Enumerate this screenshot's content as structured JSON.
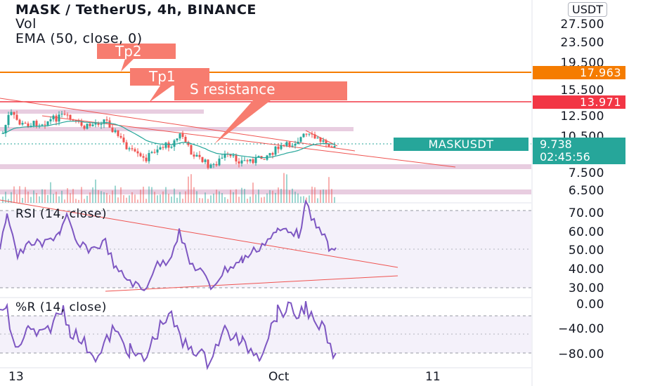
{
  "header": {
    "symbol_line": "MASK / TetherUS, 4h, BINANCE",
    "vol_label": "Vol",
    "ema_label": "EMA (50, close, 0)"
  },
  "currency_badge": "USDT",
  "price_axis": [
    "27.500",
    "23.500",
    "19.500",
    "15.500",
    "12.500",
    "10.500",
    "7.500",
    "6.500"
  ],
  "price_tags": {
    "tp2_level": "17.963",
    "tp1_level": "13.971",
    "last_price": "9.738",
    "countdown": "02:45:56",
    "symbol_tag": "MASKUSDT"
  },
  "callouts": {
    "tp2": "Tp2",
    "tp1": "Tp1",
    "resistance": "S resistance"
  },
  "rsi": {
    "label": "RSI (14, close)",
    "axis": [
      "70.00",
      "60.00",
      "50.00",
      "40.00",
      "30.00"
    ]
  },
  "willr": {
    "label": "%R (14, close)",
    "axis": [
      "0.00",
      "−40.00",
      "−80.00"
    ]
  },
  "time_axis": [
    "13",
    "Oct",
    "11"
  ],
  "colors": {
    "up": "#26a69a",
    "down": "#ef5350",
    "orange": "#f57c00",
    "red_line": "#f23645",
    "indicator": "#7e57c2",
    "callout": "#f77c6f"
  }
}
